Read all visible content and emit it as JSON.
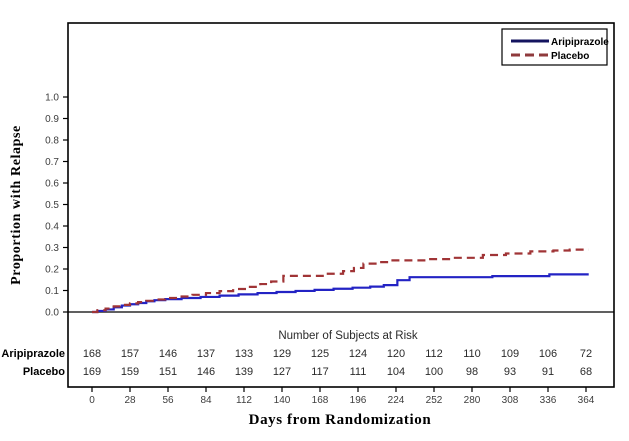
{
  "chart_data": {
    "type": "line",
    "subtype": "kaplan-meier-step",
    "title": "",
    "xlabel": "Days from Randomization",
    "ylabel": "Proportion with Relapse",
    "xlim": [
      0,
      364
    ],
    "ylim": [
      0.0,
      1.0
    ],
    "grid": false,
    "legend_position": "top-right",
    "xticks": [
      0,
      28,
      56,
      84,
      112,
      140,
      168,
      196,
      224,
      252,
      280,
      308,
      336,
      364
    ],
    "yticks": [
      "0.0",
      "0.1",
      "0.2",
      "0.3",
      "0.4",
      "0.5",
      "0.6",
      "0.7",
      "0.8",
      "0.9",
      "1.0"
    ],
    "colors": {
      "frame": "#000000",
      "tick_text": "#3d3d3d",
      "table_text": "#2b2b2b",
      "label_text": "#000000"
    },
    "series": [
      {
        "name": "Aripiprazole",
        "style": "solid",
        "color": "#2323c4",
        "legend_color": "#14145f",
        "steps": [
          [
            0,
            0
          ],
          [
            4,
            0.005
          ],
          [
            10,
            0.012
          ],
          [
            16,
            0.022
          ],
          [
            22,
            0.03
          ],
          [
            28,
            0.036
          ],
          [
            34,
            0.042
          ],
          [
            40,
            0.05
          ],
          [
            46,
            0.055
          ],
          [
            54,
            0.06
          ],
          [
            66,
            0.065
          ],
          [
            80,
            0.07
          ],
          [
            94,
            0.076
          ],
          [
            108,
            0.082
          ],
          [
            122,
            0.088
          ],
          [
            136,
            0.093
          ],
          [
            150,
            0.098
          ],
          [
            164,
            0.103
          ],
          [
            178,
            0.108
          ],
          [
            192,
            0.113
          ],
          [
            205,
            0.118
          ],
          [
            215,
            0.125
          ],
          [
            225,
            0.148
          ],
          [
            234,
            0.162
          ],
          [
            295,
            0.167
          ],
          [
            337,
            0.175
          ],
          [
            366,
            0.175
          ]
        ]
      },
      {
        "name": "Placebo",
        "style": "dashed",
        "color": "#a03436",
        "legend_color": "#8f3a3c",
        "steps": [
          [
            0,
            0
          ],
          [
            4,
            0.008
          ],
          [
            10,
            0.016
          ],
          [
            16,
            0.026
          ],
          [
            22,
            0.033
          ],
          [
            28,
            0.04
          ],
          [
            34,
            0.046
          ],
          [
            40,
            0.052
          ],
          [
            46,
            0.058
          ],
          [
            54,
            0.065
          ],
          [
            64,
            0.072
          ],
          [
            74,
            0.08
          ],
          [
            84,
            0.088
          ],
          [
            94,
            0.097
          ],
          [
            104,
            0.107
          ],
          [
            114,
            0.117
          ],
          [
            124,
            0.13
          ],
          [
            132,
            0.142
          ],
          [
            141,
            0.168
          ],
          [
            170,
            0.178
          ],
          [
            185,
            0.19
          ],
          [
            193,
            0.205
          ],
          [
            200,
            0.225
          ],
          [
            210,
            0.232
          ],
          [
            220,
            0.24
          ],
          [
            248,
            0.246
          ],
          [
            264,
            0.252
          ],
          [
            288,
            0.265
          ],
          [
            305,
            0.272
          ],
          [
            323,
            0.282
          ],
          [
            340,
            0.286
          ],
          [
            352,
            0.29
          ],
          [
            366,
            0.29
          ]
        ]
      }
    ],
    "at_risk": {
      "title": "Number of Subjects at Risk",
      "rows": [
        {
          "label": "Aripiprazole",
          "values": [
            168,
            157,
            146,
            137,
            133,
            129,
            125,
            124,
            120,
            112,
            110,
            109,
            106,
            72
          ]
        },
        {
          "label": "Placebo",
          "values": [
            169,
            159,
            151,
            146,
            139,
            127,
            117,
            111,
            104,
            100,
            98,
            93,
            91,
            68
          ]
        }
      ]
    }
  }
}
